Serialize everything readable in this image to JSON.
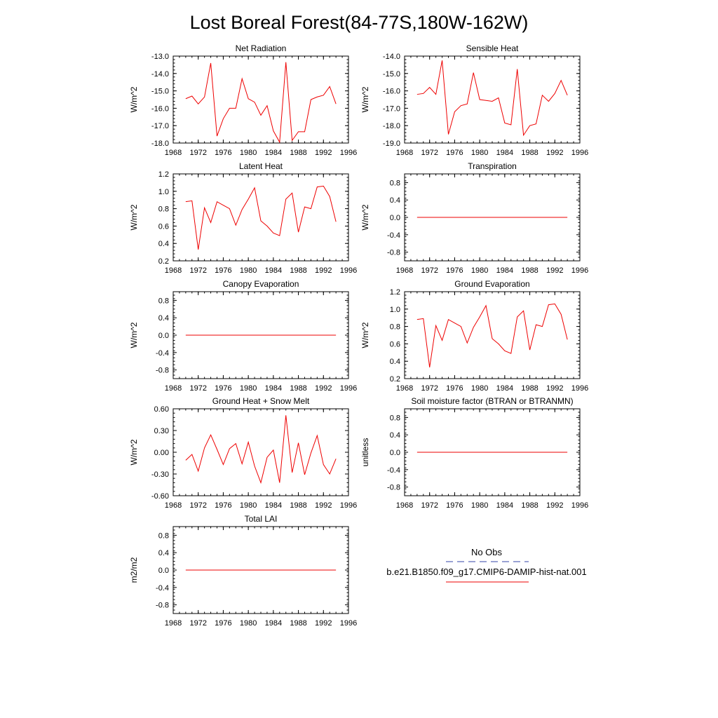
{
  "page": {
    "title": "Lost Boreal Forest(84-77S,180W-162W)"
  },
  "legend": {
    "obs_label": "No Obs",
    "model_label": "b.e21.B1850.f09_g17.CMIP6-DAMIP-hist-nat.001",
    "obs_color": "#3344aa",
    "model_color": "#ee0000"
  },
  "chart_data": [
    {
      "type": "line",
      "title": "Net Radiation",
      "ylabel": "W/m^2",
      "xlim": [
        1968,
        1996
      ],
      "ylim": [
        -18.0,
        -13.0
      ],
      "xticks": [
        "1968",
        "1972",
        "1976",
        "1980",
        "1984",
        "1988",
        "1992",
        "1996"
      ],
      "yticks": [
        "-13.0",
        "-14.0",
        "-15.0",
        "-16.0",
        "-17.0",
        "-18.0"
      ],
      "x": [
        1970,
        1971,
        1972,
        1973,
        1974,
        1975,
        1976,
        1977,
        1978,
        1979,
        1980,
        1981,
        1982,
        1983,
        1984,
        1985,
        1986,
        1987,
        1988,
        1989,
        1990,
        1991,
        1992,
        1993,
        1994
      ],
      "series": [
        {
          "values": [
            -15.45,
            -15.3,
            -15.75,
            -15.35,
            -13.4,
            -17.6,
            -16.6,
            -16.0,
            -16.0,
            -14.3,
            -15.45,
            -15.65,
            -16.4,
            -15.85,
            -17.3,
            -17.95,
            -13.35,
            -17.85,
            -17.35,
            -17.35,
            -15.5,
            -15.35,
            -15.25,
            -14.75,
            -15.75
          ],
          "color": "#ee0000"
        }
      ]
    },
    {
      "type": "line",
      "title": "Sensible Heat",
      "ylabel": "W/m^2",
      "xlim": [
        1968,
        1996
      ],
      "ylim": [
        -19.0,
        -14.0
      ],
      "xticks": [
        "1968",
        "1972",
        "1976",
        "1980",
        "1984",
        "1988",
        "1992",
        "1996"
      ],
      "yticks": [
        "-14.0",
        "-15.0",
        "-16.0",
        "-17.0",
        "-18.0",
        "-19.0"
      ],
      "x": [
        1970,
        1971,
        1972,
        1973,
        1974,
        1975,
        1976,
        1977,
        1978,
        1979,
        1980,
        1981,
        1982,
        1983,
        1984,
        1985,
        1986,
        1987,
        1988,
        1989,
        1990,
        1991,
        1992,
        1993,
        1994
      ],
      "series": [
        {
          "values": [
            -16.2,
            -16.15,
            -15.8,
            -16.2,
            -14.25,
            -18.5,
            -17.2,
            -16.85,
            -16.75,
            -14.95,
            -16.5,
            -16.55,
            -16.6,
            -16.4,
            -17.85,
            -17.95,
            -14.75,
            -18.55,
            -18.0,
            -17.9,
            -16.25,
            -16.6,
            -16.15,
            -15.4,
            -16.25
          ],
          "color": "#ee0000"
        }
      ]
    },
    {
      "type": "line",
      "title": "Latent Heat",
      "ylabel": "W/m^2",
      "xlim": [
        1968,
        1996
      ],
      "ylim": [
        0.2,
        1.2
      ],
      "xticks": [
        "1968",
        "1972",
        "1976",
        "1980",
        "1984",
        "1988",
        "1992",
        "1996"
      ],
      "yticks": [
        "1.2",
        "1.0",
        "0.8",
        "0.6",
        "0.4",
        "0.2"
      ],
      "x": [
        1970,
        1971,
        1972,
        1973,
        1974,
        1975,
        1976,
        1977,
        1978,
        1979,
        1980,
        1981,
        1982,
        1983,
        1984,
        1985,
        1986,
        1987,
        1988,
        1989,
        1990,
        1991,
        1992,
        1993,
        1994
      ],
      "series": [
        {
          "values": [
            0.88,
            0.89,
            0.33,
            0.81,
            0.64,
            0.88,
            0.84,
            0.8,
            0.61,
            0.79,
            0.91,
            1.04,
            0.66,
            0.6,
            0.52,
            0.49,
            0.91,
            0.98,
            0.53,
            0.82,
            0.8,
            1.05,
            1.06,
            0.94,
            0.65
          ],
          "color": "#ee0000"
        }
      ]
    },
    {
      "type": "line",
      "title": "Transpiration",
      "ylabel": "W/m^2",
      "xlim": [
        1968,
        1996
      ],
      "ylim": [
        -1.0,
        1.0
      ],
      "xticks": [
        "1968",
        "1972",
        "1976",
        "1980",
        "1984",
        "1988",
        "1992",
        "1996"
      ],
      "yticks": [
        "0.8",
        "0.4",
        "0.0",
        "-0.4",
        "-0.8"
      ],
      "x": [
        1970,
        1994
      ],
      "series": [
        {
          "values": [
            0.0,
            0.0
          ],
          "color": "#ee0000"
        }
      ]
    },
    {
      "type": "line",
      "title": "Canopy Evaporation",
      "ylabel": "W/m^2",
      "xlim": [
        1968,
        1996
      ],
      "ylim": [
        -1.0,
        1.0
      ],
      "xticks": [
        "1968",
        "1972",
        "1976",
        "1980",
        "1984",
        "1988",
        "1992",
        "1996"
      ],
      "yticks": [
        "0.8",
        "0.4",
        "0.0",
        "-0.4",
        "-0.8"
      ],
      "x": [
        1970,
        1994
      ],
      "series": [
        {
          "values": [
            0.0,
            0.0
          ],
          "color": "#ee0000"
        }
      ]
    },
    {
      "type": "line",
      "title": "Ground Evaporation",
      "ylabel": "W/m^2",
      "xlim": [
        1968,
        1996
      ],
      "ylim": [
        0.2,
        1.2
      ],
      "xticks": [
        "1968",
        "1972",
        "1976",
        "1980",
        "1984",
        "1988",
        "1992",
        "1996"
      ],
      "yticks": [
        "1.2",
        "1.0",
        "0.8",
        "0.6",
        "0.4",
        "0.2"
      ],
      "x": [
        1970,
        1971,
        1972,
        1973,
        1974,
        1975,
        1976,
        1977,
        1978,
        1979,
        1980,
        1981,
        1982,
        1983,
        1984,
        1985,
        1986,
        1987,
        1988,
        1989,
        1990,
        1991,
        1992,
        1993,
        1994
      ],
      "series": [
        {
          "values": [
            0.88,
            0.89,
            0.33,
            0.81,
            0.64,
            0.88,
            0.84,
            0.8,
            0.61,
            0.79,
            0.91,
            1.04,
            0.66,
            0.6,
            0.52,
            0.49,
            0.91,
            0.98,
            0.53,
            0.82,
            0.8,
            1.05,
            1.06,
            0.94,
            0.65
          ],
          "color": "#ee0000"
        }
      ]
    },
    {
      "type": "line",
      "title": "Ground Heat + Snow Melt",
      "ylabel": "W/m^2",
      "xlim": [
        1968,
        1996
      ],
      "ylim": [
        -0.6,
        0.6
      ],
      "xticks": [
        "1968",
        "1972",
        "1976",
        "1980",
        "1984",
        "1988",
        "1992",
        "1996"
      ],
      "yticks": [
        "0.60",
        "0.30",
        "0.00",
        "-0.30",
        "-0.60"
      ],
      "x": [
        1970,
        1971,
        1972,
        1973,
        1974,
        1975,
        1976,
        1977,
        1978,
        1979,
        1980,
        1981,
        1982,
        1983,
        1984,
        1985,
        1986,
        1987,
        1988,
        1989,
        1990,
        1991,
        1992,
        1993,
        1994
      ],
      "series": [
        {
          "values": [
            -0.11,
            -0.03,
            -0.26,
            0.06,
            0.24,
            0.04,
            -0.17,
            0.05,
            0.12,
            -0.16,
            0.14,
            -0.19,
            -0.42,
            -0.07,
            0.03,
            -0.42,
            0.51,
            -0.28,
            0.13,
            -0.31,
            -0.01,
            0.23,
            -0.17,
            -0.3,
            -0.09
          ],
          "color": "#ee0000"
        }
      ]
    },
    {
      "type": "line",
      "title": "Soil moisture factor (BTRAN or BTRANMN)",
      "ylabel": "unitless",
      "xlim": [
        1968,
        1996
      ],
      "ylim": [
        -1.0,
        1.0
      ],
      "xticks": [
        "1968",
        "1972",
        "1976",
        "1980",
        "1984",
        "1988",
        "1992",
        "1996"
      ],
      "yticks": [
        "0.8",
        "0.4",
        "0.0",
        "-0.4",
        "-0.8"
      ],
      "x": [
        1970,
        1994
      ],
      "series": [
        {
          "values": [
            0.0,
            0.0
          ],
          "color": "#ee0000"
        }
      ]
    },
    {
      "type": "line",
      "title": "Total LAI",
      "ylabel": "m2/m2",
      "xlim": [
        1968,
        1996
      ],
      "ylim": [
        -1.0,
        1.0
      ],
      "xticks": [
        "1968",
        "1972",
        "1976",
        "1980",
        "1984",
        "1988",
        "1992",
        "1996"
      ],
      "yticks": [
        "0.8",
        "0.4",
        "0.0",
        "-0.4",
        "-0.8"
      ],
      "x": [
        1970,
        1994
      ],
      "series": [
        {
          "values": [
            0.0,
            0.0
          ],
          "color": "#ee0000"
        }
      ]
    }
  ]
}
